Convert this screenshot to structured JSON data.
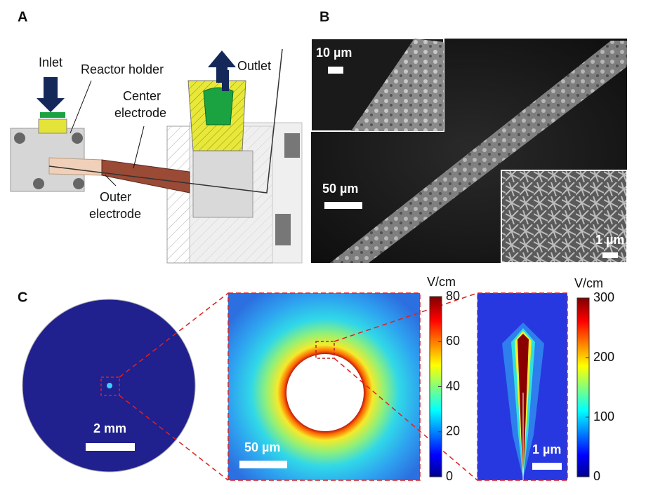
{
  "panel_a": {
    "label": "A",
    "inlet": "Inlet",
    "outlet": "Outlet",
    "reactor_holder": "Reactor holder",
    "center_electrode": [
      "Center",
      "electrode"
    ],
    "outer_electrode": [
      "Outer",
      "electrode"
    ]
  },
  "panel_b": {
    "label": "B",
    "inset_scale": "10 µm",
    "main_scale": "50 µm",
    "zoom_scale": "1 µm"
  },
  "panel_c": {
    "label": "C",
    "overview_scale": "2 mm",
    "middle_scale": "50 µm",
    "right_scale": "1 µm",
    "colorbars": [
      {
        "unit": "V/cm",
        "lim": [
          0,
          80
        ],
        "ticks": [
          0,
          20,
          40,
          60,
          80
        ]
      },
      {
        "unit": "V/cm",
        "lim": [
          0,
          300
        ],
        "ticks": [
          0,
          100,
          200,
          300
        ]
      }
    ]
  }
}
